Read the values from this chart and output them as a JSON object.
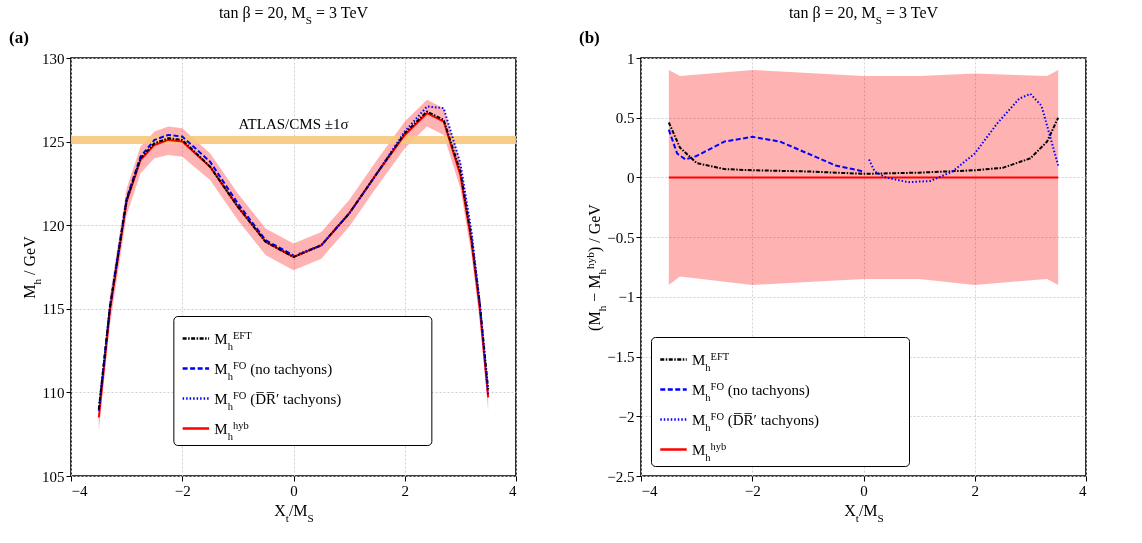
{
  "chart_data": [
    {
      "type": "line",
      "title": "tan β = 20, M$_{S}$ = 3 TeV",
      "xlabel": "X$_{t}$/M$_{S}$",
      "ylabel": "M$_{h}$ / GeV",
      "annotations": [
        "(a)"
      ],
      "xlim": [
        -4,
        4
      ],
      "xticks": [
        -4,
        -2,
        0,
        2,
        4
      ],
      "ylim": [
        105,
        130
      ],
      "yticks": [
        105,
        110,
        115,
        120,
        125,
        130
      ],
      "grid": true,
      "legend": "bottom",
      "bands": [
        {
          "axis": "y",
          "from": 124.85,
          "to": 125.33,
          "label": "ATLAS/CMS ±1σ",
          "color": "#f9c77c"
        }
      ],
      "series": [
        {
          "name": "M$_{h}$$^{EFT}$",
          "color": "#000000",
          "line_style": "dashdot",
          "x": [
            -3.5,
            -3.3,
            -3.0,
            -2.75,
            -2.5,
            -2.25,
            -2.0,
            -1.5,
            -1.0,
            -0.5,
            0,
            0.5,
            1.0,
            1.5,
            2.0,
            2.4,
            2.7,
            3.0,
            3.2,
            3.35,
            3.5
          ],
          "values": [
            109.0,
            115.1,
            121.5,
            124.0,
            124.9,
            125.2,
            125.1,
            123.5,
            121.1,
            119.0,
            118.1,
            118.8,
            120.7,
            123.1,
            125.5,
            126.8,
            126.3,
            123.2,
            119.2,
            115.3,
            110.2
          ]
        },
        {
          "name": "M$_{h}$$^{FO}$ (no tachyons)",
          "color": "#0000ff",
          "line_style": "dashed",
          "x": [
            -3.5,
            -3.3,
            -3.0,
            -2.75,
            -2.5,
            -2.25,
            -2.0,
            -1.5,
            -1.0,
            -0.5,
            0
          ],
          "values": [
            108.9,
            115.1,
            121.6,
            124.1,
            125.1,
            125.4,
            125.3,
            123.8,
            121.3,
            119.1,
            118.2
          ]
        },
        {
          "name": "M$_{h}$$^{FO}$ (D̅R̅′ tachyons)",
          "color": "#0000ff",
          "line_style": "dotted",
          "x": [
            0.1,
            0.5,
            1.0,
            1.5,
            2.0,
            2.4,
            2.7,
            3.0,
            3.2,
            3.35,
            3.5
          ],
          "values": [
            118.3,
            118.8,
            120.7,
            123.1,
            125.6,
            127.1,
            127.0,
            123.7,
            119.6,
            115.3,
            109.8
          ]
        },
        {
          "name": "M$_{h}$$^{hyb}$",
          "color": "#ff0000",
          "line_style": "solid",
          "x": [
            -3.5,
            -3.3,
            -3.0,
            -2.75,
            -2.5,
            -2.25,
            -2.0,
            -1.5,
            -1.0,
            -0.5,
            0,
            0.5,
            1.0,
            1.5,
            2.0,
            2.4,
            2.7,
            3.0,
            3.2,
            3.35,
            3.5
          ],
          "values": [
            108.5,
            114.9,
            121.4,
            123.9,
            124.8,
            125.1,
            125.0,
            123.5,
            121.1,
            119.0,
            118.1,
            118.8,
            120.7,
            123.1,
            125.4,
            126.7,
            126.2,
            123.0,
            119.0,
            115.0,
            109.7
          ],
          "lower": [
            107.7,
            114.0,
            120.6,
            123.1,
            124.0,
            124.2,
            124.1,
            122.7,
            120.3,
            118.2,
            117.3,
            118.0,
            119.9,
            122.3,
            124.6,
            125.9,
            125.4,
            122.2,
            118.2,
            114.2,
            108.9
          ],
          "upper": [
            109.3,
            115.8,
            122.2,
            124.7,
            125.6,
            125.9,
            125.8,
            124.3,
            121.9,
            119.8,
            118.9,
            119.6,
            121.5,
            123.9,
            126.2,
            127.5,
            127.0,
            123.8,
            119.8,
            115.8,
            110.5
          ]
        }
      ]
    },
    {
      "type": "line",
      "title": "tan β = 20, M$_{S}$ = 3 TeV",
      "xlabel": "X$_{t}$/M$_{S}$",
      "ylabel": "(M$_{h}$ − M$_{h}$$^{hyb}$) / GeV",
      "annotations": [
        "(b)"
      ],
      "xlim": [
        -4,
        4
      ],
      "xticks": [
        -4,
        -2,
        0,
        2,
        4
      ],
      "ylim": [
        -2.5,
        1
      ],
      "yticks": [
        -2.5,
        -2,
        -1.5,
        -1,
        -0.5,
        0,
        0.5,
        1
      ],
      "grid": true,
      "legend": "bottom left",
      "series": [
        {
          "name": "M$_{h}$$^{EFT}$",
          "color": "#000000",
          "line_style": "dashdot",
          "x": [
            -3.5,
            -3.3,
            -3.0,
            -2.5,
            -2.0,
            -1.0,
            0,
            1.0,
            2.0,
            2.5,
            3.0,
            3.3,
            3.5
          ],
          "values": [
            0.46,
            0.25,
            0.12,
            0.07,
            0.06,
            0.05,
            0.03,
            0.04,
            0.06,
            0.08,
            0.16,
            0.3,
            0.5
          ]
        },
        {
          "name": "M$_{h}$$^{FO}$ (no tachyons)",
          "color": "#0000ff",
          "line_style": "dashed",
          "x": [
            -3.5,
            -3.35,
            -3.2,
            -3.0,
            -2.5,
            -2.0,
            -1.5,
            -1.0,
            -0.5,
            0
          ],
          "values": [
            0.4,
            0.2,
            0.15,
            0.18,
            0.3,
            0.34,
            0.3,
            0.2,
            0.1,
            0.05
          ]
        },
        {
          "name": "M$_{h}$$^{FO}$ (D̅R̅′ tachyons)",
          "color": "#0000ff",
          "line_style": "dotted",
          "x": [
            0.1,
            0.2,
            0.4,
            0.8,
            1.2,
            1.6,
            2.0,
            2.4,
            2.8,
            3.0,
            3.2,
            3.35,
            3.5
          ],
          "values": [
            0.15,
            0.05,
            0.0,
            -0.04,
            -0.03,
            0.05,
            0.2,
            0.45,
            0.66,
            0.7,
            0.6,
            0.35,
            0.1
          ]
        },
        {
          "name": "M$_{h}$$^{hyb}$",
          "color": "#ff0000",
          "line_style": "solid",
          "x": [
            -3.5,
            -3.3,
            -2.0,
            0,
            1.0,
            2.0,
            3.3,
            3.5
          ],
          "values": [
            0,
            0,
            0,
            0,
            0,
            0,
            0,
            0
          ],
          "lower": [
            -0.9,
            -0.83,
            -0.9,
            -0.85,
            -0.85,
            -0.9,
            -0.85,
            -0.9
          ],
          "upper": [
            0.9,
            0.85,
            0.9,
            0.85,
            0.85,
            0.87,
            0.85,
            0.9
          ]
        }
      ]
    }
  ]
}
